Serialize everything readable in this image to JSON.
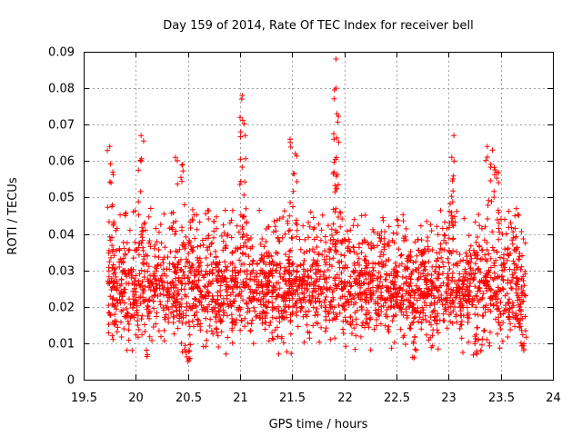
{
  "chart_data": {
    "type": "scatter",
    "title": "Day 159 of 2014, Rate Of TEC Index for receiver bell",
    "xlabel": "GPS time / hours",
    "ylabel": "ROTI / TECUs",
    "xlim": [
      19.5,
      24
    ],
    "ylim": [
      0,
      0.09
    ],
    "x_ticks": [
      "19.5",
      "20",
      "20.5",
      "21",
      "21.5",
      "22",
      "22.5",
      "23",
      "23.5",
      "24"
    ],
    "y_ticks": [
      "0",
      "0.01",
      "0.02",
      "0.03",
      "0.04",
      "0.05",
      "0.06",
      "0.07",
      "0.08",
      "0.09"
    ],
    "grid": true,
    "marker": "+",
    "color": "#ff0000",
    "series": [
      {
        "name": "ROTI",
        "x_range": [
          19.73,
          23.74
        ],
        "typical_y_range": [
          0.01,
          0.04
        ],
        "notable_points": [
          {
            "x": 19.75,
            "y": 0.064
          },
          {
            "x": 19.78,
            "y": 0.057
          },
          {
            "x": 20.05,
            "y": 0.067
          },
          {
            "x": 20.38,
            "y": 0.061
          },
          {
            "x": 20.45,
            "y": 0.059
          },
          {
            "x": 20.5,
            "y": 0.005
          },
          {
            "x": 21.02,
            "y": 0.078
          },
          {
            "x": 21.0,
            "y": 0.072
          },
          {
            "x": 21.05,
            "y": 0.067
          },
          {
            "x": 21.48,
            "y": 0.066
          },
          {
            "x": 21.53,
            "y": 0.062
          },
          {
            "x": 21.92,
            "y": 0.088
          },
          {
            "x": 21.92,
            "y": 0.08
          },
          {
            "x": 21.93,
            "y": 0.073
          },
          {
            "x": 21.9,
            "y": 0.066
          },
          {
            "x": 21.9,
            "y": 0.057
          },
          {
            "x": 23.05,
            "y": 0.067
          },
          {
            "x": 23.03,
            "y": 0.061
          },
          {
            "x": 23.37,
            "y": 0.064
          },
          {
            "x": 23.42,
            "y": 0.063
          },
          {
            "x": 23.46,
            "y": 0.057
          },
          {
            "x": 22.67,
            "y": 0.006
          },
          {
            "x": 23.27,
            "y": 0.007
          },
          {
            "x": 23.72,
            "y": 0.008
          }
        ]
      }
    ]
  }
}
